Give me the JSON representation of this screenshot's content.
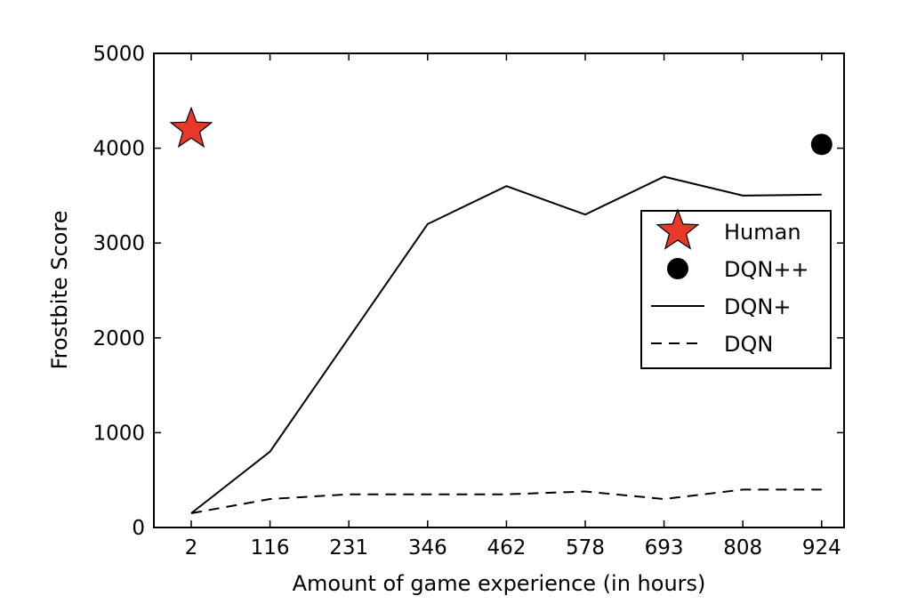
{
  "chart_data": {
    "type": "line",
    "title": "",
    "xlabel": "Amount of game experience (in hours)",
    "ylabel": "Frostbite Score",
    "x_ticks": [
      "2",
      "116",
      "231",
      "346",
      "462",
      "578",
      "693",
      "808",
      "924"
    ],
    "y_ticks": [
      "0",
      "1000",
      "2000",
      "3000",
      "4000",
      "5000"
    ],
    "ylim": [
      0,
      5000
    ],
    "grid": false,
    "legend_position": "center-right",
    "series": [
      {
        "name": "DQN+",
        "style": "solid",
        "color": "#000000",
        "x": [
          "2",
          "116",
          "231",
          "346",
          "462",
          "578",
          "693",
          "808",
          "924"
        ],
        "values": [
          150,
          800,
          2000,
          3200,
          3600,
          3300,
          3700,
          3500,
          3510
        ]
      },
      {
        "name": "DQN",
        "style": "dashed",
        "color": "#000000",
        "x": [
          "2",
          "116",
          "231",
          "346",
          "462",
          "578",
          "693",
          "808",
          "924"
        ],
        "values": [
          150,
          300,
          350,
          350,
          350,
          380,
          300,
          400,
          400
        ]
      }
    ],
    "points": [
      {
        "name": "Human",
        "marker": "star",
        "color": "#e8382a",
        "x": "2",
        "value": 4200
      },
      {
        "name": "DQN++",
        "marker": "circle",
        "color": "#000000",
        "x": "924",
        "value": 4040
      }
    ],
    "legend": [
      "Human",
      "DQN++",
      "DQN+",
      "DQN"
    ]
  }
}
